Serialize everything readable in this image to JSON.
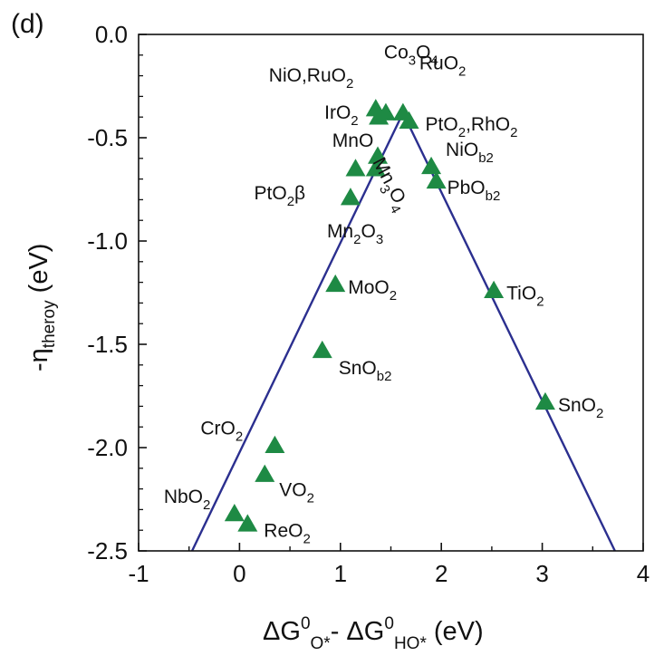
{
  "chart_data": {
    "type": "scatter",
    "panel_label": "(d)",
    "xlim": [
      -1,
      4
    ],
    "ylim": [
      -2.5,
      0.0
    ],
    "xticks": [
      "-1",
      "0",
      "1",
      "2",
      "3",
      "4"
    ],
    "yticks": [
      "0.0",
      "-0.5",
      "-1.0",
      "-1.5",
      "-2.0",
      "-2.5"
    ],
    "xlabel": {
      "base": "ΔG",
      "sup": "0",
      "sub1": "O*",
      "mid": "- ΔG",
      "sup2": "0",
      "sub2": "HO*",
      "unit": "(eV)"
    },
    "ylabel": {
      "base": "-η",
      "sub": "theroy",
      "unit": "(eV)"
    },
    "volcano_line": {
      "color": "#2b2f8f",
      "x": [
        -0.47,
        1.62,
        3.72
      ],
      "y": [
        -2.5,
        -0.38,
        -2.5
      ]
    },
    "marker_color": "#1e8a44",
    "points": [
      {
        "x": -0.05,
        "y": -2.32,
        "label": "NbO",
        "sub": "2"
      },
      {
        "x": 0.08,
        "y": -2.37,
        "label": "ReO",
        "sub": "2"
      },
      {
        "x": 0.25,
        "y": -2.13,
        "label": "VO",
        "sub": "2"
      },
      {
        "x": 0.35,
        "y": -1.99,
        "label": "CrO",
        "sub": "2"
      },
      {
        "x": 0.82,
        "y": -1.53,
        "label": "SnO",
        "sub": "b2"
      },
      {
        "x": 0.95,
        "y": -1.21,
        "label": "MoO",
        "sub": "2"
      },
      {
        "x": 1.1,
        "y": -0.79,
        "label": "Mn",
        "sub": "2",
        "label2": "O",
        "sub2": "3"
      },
      {
        "x": 1.15,
        "y": -0.65,
        "label": "PtO",
        "sub": "2",
        "suffix": "β"
      },
      {
        "x": 1.35,
        "y": -0.65,
        "label": "MnO"
      },
      {
        "x": 1.37,
        "y": -0.59,
        "label": "Mn",
        "sub": "3",
        "label2": "O",
        "sub2": "4"
      },
      {
        "x": 1.35,
        "y": -0.36,
        "label": "NiO,RuO",
        "sub": "2"
      },
      {
        "x": 1.38,
        "y": -0.4,
        "label": "IrO",
        "sub": "2"
      },
      {
        "x": 1.45,
        "y": -0.38,
        "label": "Co",
        "sub": "3",
        "label2": "O",
        "sub2": "4"
      },
      {
        "x": 1.62,
        "y": -0.38,
        "label": "RuO",
        "sub": "2"
      },
      {
        "x": 1.68,
        "y": -0.42,
        "label": "PtO",
        "sub": "2",
        "label2": ",RhO",
        "sub2": "2"
      },
      {
        "x": 1.9,
        "y": -0.64,
        "label": "NiO",
        "sub": "b2"
      },
      {
        "x": 1.95,
        "y": -0.71,
        "label": "PbO",
        "sub": "b2"
      },
      {
        "x": 2.52,
        "y": -1.24,
        "label": "TiO",
        "sub": "2"
      },
      {
        "x": 3.03,
        "y": -1.78,
        "label": "SnO",
        "sub": "2"
      }
    ]
  }
}
